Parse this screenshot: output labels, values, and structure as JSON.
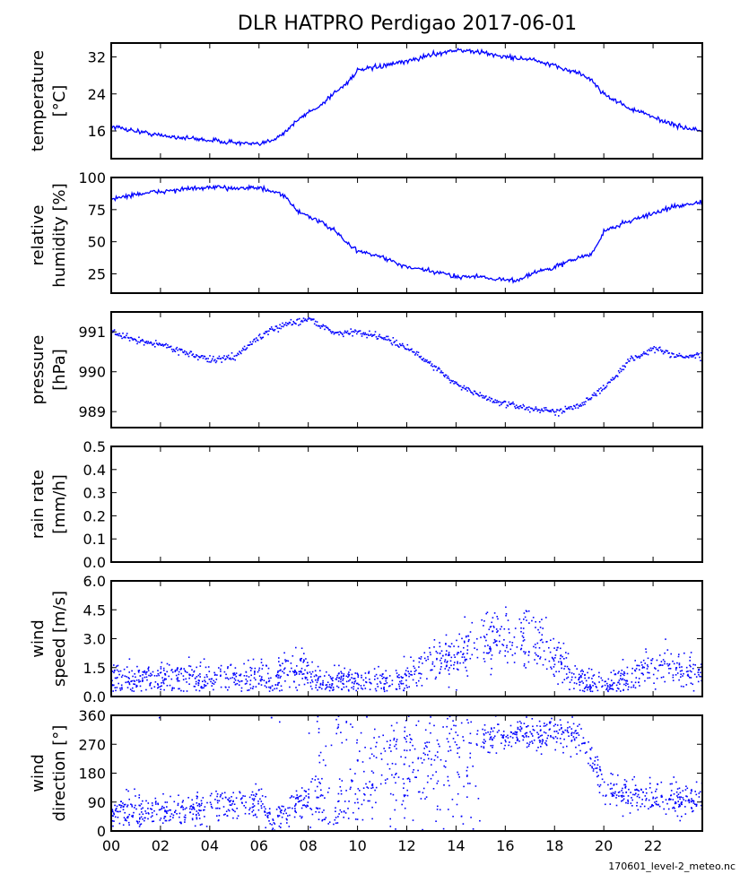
{
  "title": "DLR HATPRO  Perdigao  2017-06-01",
  "footer": "170601_level-2_meteo.nc",
  "series_color": "#0000ff",
  "chart_data": {
    "type": "line",
    "xlabel": "",
    "xlim": [
      0,
      24
    ],
    "xticks": [
      0,
      2,
      4,
      6,
      8,
      10,
      12,
      14,
      16,
      18,
      20,
      22
    ],
    "xtick_labels": [
      "00",
      "02",
      "04",
      "06",
      "08",
      "10",
      "12",
      "14",
      "16",
      "18",
      "20",
      "22"
    ],
    "panels": [
      {
        "name": "temperature",
        "ylabel": [
          "temperature",
          "[°C]"
        ],
        "ylim": [
          10,
          35
        ],
        "yticks": [
          16,
          24,
          32
        ],
        "ytick_labels": [
          "16",
          "24",
          "32"
        ],
        "kind": "line",
        "noise": 0.25,
        "points": [
          [
            0,
            17
          ],
          [
            1,
            16
          ],
          [
            2,
            15
          ],
          [
            3,
            14.5
          ],
          [
            4,
            14
          ],
          [
            5,
            13.5
          ],
          [
            6,
            13
          ],
          [
            6.5,
            14
          ],
          [
            7,
            15.5
          ],
          [
            7.5,
            18
          ],
          [
            8,
            20
          ],
          [
            8.5,
            21.5
          ],
          [
            9,
            24
          ],
          [
            9.5,
            26
          ],
          [
            10,
            29
          ],
          [
            11,
            30
          ],
          [
            12,
            31
          ],
          [
            13,
            32.5
          ],
          [
            14,
            33.5
          ],
          [
            15,
            33
          ],
          [
            16,
            32
          ],
          [
            17,
            31.5
          ],
          [
            18,
            30
          ],
          [
            19,
            28.5
          ],
          [
            19.5,
            27
          ],
          [
            20,
            24
          ],
          [
            21,
            21
          ],
          [
            22,
            19
          ],
          [
            23,
            17
          ],
          [
            24,
            16
          ]
        ]
      },
      {
        "name": "relative-humidity",
        "ylabel": [
          "relative",
          "humidity [%]"
        ],
        "ylim": [
          10,
          100
        ],
        "yticks": [
          25,
          50,
          75,
          100
        ],
        "ytick_labels": [
          "25",
          "50",
          "75",
          "100"
        ],
        "kind": "line",
        "noise": 0.9,
        "points": [
          [
            0,
            83
          ],
          [
            1,
            87
          ],
          [
            2,
            89
          ],
          [
            3,
            91
          ],
          [
            4,
            92
          ],
          [
            5,
            92
          ],
          [
            6,
            92
          ],
          [
            7,
            86
          ],
          [
            7.5,
            75
          ],
          [
            8,
            70
          ],
          [
            9,
            60
          ],
          [
            9.5,
            50
          ],
          [
            10,
            43
          ],
          [
            11,
            38
          ],
          [
            12,
            30
          ],
          [
            13,
            27
          ],
          [
            14,
            23
          ],
          [
            15,
            23
          ],
          [
            16,
            20
          ],
          [
            16.5,
            20
          ],
          [
            17,
            25
          ],
          [
            18,
            30
          ],
          [
            19,
            38
          ],
          [
            19.5,
            40
          ],
          [
            19.8,
            50
          ],
          [
            20,
            58
          ],
          [
            21,
            66
          ],
          [
            22,
            72
          ],
          [
            23,
            78
          ],
          [
            24,
            81
          ]
        ]
      },
      {
        "name": "pressure",
        "ylabel": [
          "pressure",
          "[hPa]"
        ],
        "ylim": [
          988.6,
          991.5
        ],
        "yticks": [
          989,
          990,
          991
        ],
        "ytick_labels": [
          "989",
          "990",
          "991"
        ],
        "kind": "dots",
        "noise": 0.04,
        "points": [
          [
            0,
            991.0
          ],
          [
            1,
            990.8
          ],
          [
            2,
            990.7
          ],
          [
            3,
            990.5
          ],
          [
            4,
            990.3
          ],
          [
            5,
            990.4
          ],
          [
            6,
            990.9
          ],
          [
            7,
            991.2
          ],
          [
            8,
            991.35
          ],
          [
            9,
            991.0
          ],
          [
            10,
            991.0
          ],
          [
            11,
            990.9
          ],
          [
            12,
            990.6
          ],
          [
            13,
            990.2
          ],
          [
            14,
            989.7
          ],
          [
            15,
            989.4
          ],
          [
            16,
            989.2
          ],
          [
            17,
            989.1
          ],
          [
            18,
            989.0
          ],
          [
            19,
            989.2
          ],
          [
            20,
            989.6
          ],
          [
            21,
            990.3
          ],
          [
            22,
            990.6
          ],
          [
            23,
            990.4
          ],
          [
            24,
            990.4
          ]
        ]
      },
      {
        "name": "rain-rate",
        "ylabel": [
          "rain rate",
          "[mm/h]"
        ],
        "ylim": [
          0,
          0.5
        ],
        "yticks": [
          0,
          0.1,
          0.2,
          0.3,
          0.4,
          0.5
        ],
        "ytick_labels": [
          "0.0",
          "0.1",
          "0.2",
          "0.3",
          "0.4",
          "0.5"
        ],
        "kind": "none",
        "points": [
          [
            0,
            0
          ],
          [
            24,
            0
          ]
        ]
      },
      {
        "name": "wind-speed",
        "ylabel": [
          "wind",
          "speed [m/s]"
        ],
        "ylim": [
          0,
          6
        ],
        "yticks": [
          0,
          1.5,
          3,
          4.5,
          6
        ],
        "ytick_labels": [
          "0.0",
          "1.5",
          "3.0",
          "4.5",
          "6.0"
        ],
        "kind": "scatter",
        "noise": 0.45,
        "points": [
          [
            0,
            0.9
          ],
          [
            2,
            1.0
          ],
          [
            4,
            0.9
          ],
          [
            6,
            1.2
          ],
          [
            6.5,
            0.7
          ],
          [
            7,
            1.4
          ],
          [
            8,
            1.4
          ],
          [
            8.5,
            0.7
          ],
          [
            10,
            0.8
          ],
          [
            12,
            1.0
          ],
          [
            13,
            1.8
          ],
          [
            14,
            2.0
          ],
          [
            15,
            3.0
          ],
          [
            16,
            2.8
          ],
          [
            17,
            2.8
          ],
          [
            18,
            2.2
          ],
          [
            19,
            0.8
          ],
          [
            20,
            0.7
          ],
          [
            21,
            1.0
          ],
          [
            22,
            1.6
          ],
          [
            23,
            1.5
          ],
          [
            24,
            1.3
          ]
        ]
      },
      {
        "name": "wind-direction",
        "ylabel": [
          "wind",
          "direction [°]"
        ],
        "ylim": [
          0,
          360
        ],
        "yticks": [
          0,
          90,
          180,
          270,
          360
        ],
        "ytick_labels": [
          "0",
          "90",
          "180",
          "270",
          "360"
        ],
        "kind": "scatter",
        "noise": 25,
        "points": [
          [
            0,
            65
          ],
          [
            3,
            65
          ],
          [
            5,
            85
          ],
          [
            6,
            95
          ],
          [
            6.5,
            30
          ],
          [
            7.5,
            90
          ],
          [
            8,
            100
          ],
          [
            9,
            60
          ],
          [
            10,
            120
          ],
          [
            11,
            230
          ],
          [
            12,
            200
          ],
          [
            13,
            240
          ],
          [
            14,
            280
          ],
          [
            15,
            290
          ],
          [
            16,
            295
          ],
          [
            17,
            300
          ],
          [
            18,
            305
          ],
          [
            19,
            300
          ],
          [
            19.6,
            200
          ],
          [
            20,
            140
          ],
          [
            21,
            110
          ],
          [
            22,
            110
          ],
          [
            23,
            100
          ],
          [
            24,
            100
          ]
        ]
      }
    ]
  }
}
